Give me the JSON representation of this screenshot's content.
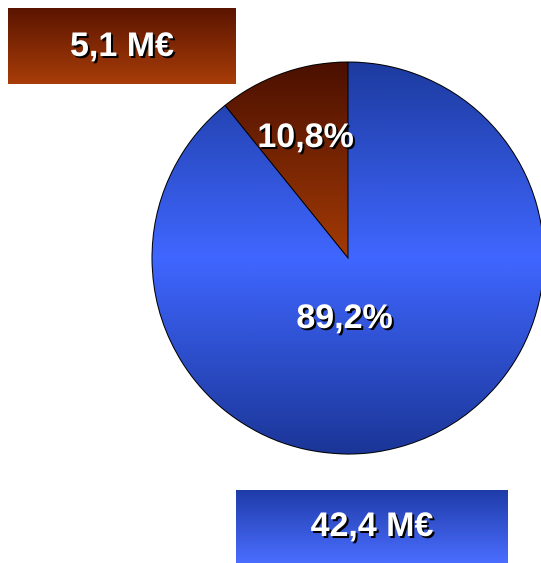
{
  "chart_data": {
    "type": "pie",
    "values": [
      10.8,
      89.2
    ],
    "value_labels": [
      "10,8%",
      "89,2%"
    ],
    "colors": [
      "#8a2a00",
      "#3358f0"
    ],
    "annotations": [
      "5,1 M€",
      "42,4 M€"
    ]
  }
}
